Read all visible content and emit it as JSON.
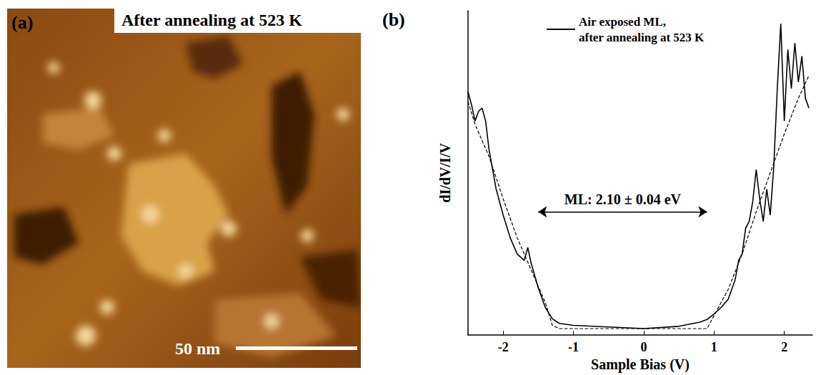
{
  "chart_data": [
    {
      "type": "image",
      "panel": "(a)",
      "title": "After annealing at 523 K",
      "scale_bar": "50 nm"
    },
    {
      "type": "line",
      "panel": "(b)",
      "x_label": "Sample Bias (V)",
      "y_label": "dI/dV/I/V",
      "xlim": [
        -2.5,
        2.4
      ],
      "xticks": [
        -2,
        -1,
        0,
        1,
        2
      ],
      "ylim": [
        0,
        1
      ],
      "tick_labels": "x",
      "grid": false,
      "legend": "top",
      "annotation": {
        "text": "ML: 2.10 ± 0.04 eV",
        "x": [
          -1.5,
          0.9
        ],
        "y": 0.38
      },
      "series": [
        {
          "name": "Air exposed ML, after annealing at 523 K",
          "color": "#000000",
          "line_style": "solid",
          "x": [
            -2.5,
            -2.45,
            -2.4,
            -2.35,
            -2.3,
            -2.25,
            -2.2,
            -2.1,
            -2.0,
            -1.9,
            -1.8,
            -1.75,
            -1.7,
            -1.65,
            -1.6,
            -1.5,
            -1.4,
            -1.3,
            -1.2,
            -1.0,
            -0.5,
            0,
            0.5,
            0.8,
            0.9,
            1.0,
            1.1,
            1.2,
            1.3,
            1.35,
            1.4,
            1.45,
            1.5,
            1.55,
            1.6,
            1.65,
            1.7,
            1.75,
            1.8,
            1.85,
            1.9,
            1.95,
            2.0,
            2.05,
            2.1,
            2.15,
            2.2,
            2.25,
            2.3,
            2.35
          ],
          "values": [
            0.75,
            0.71,
            0.66,
            0.69,
            0.7,
            0.66,
            0.57,
            0.45,
            0.37,
            0.3,
            0.25,
            0.24,
            0.23,
            0.27,
            0.22,
            0.145,
            0.085,
            0.05,
            0.036,
            0.03,
            0.025,
            0.02,
            0.027,
            0.04,
            0.048,
            0.065,
            0.085,
            0.11,
            0.17,
            0.23,
            0.25,
            0.33,
            0.35,
            0.41,
            0.51,
            0.42,
            0.35,
            0.45,
            0.37,
            0.52,
            0.76,
            0.96,
            0.66,
            0.88,
            0.76,
            0.9,
            0.78,
            0.86,
            0.73,
            0.7
          ]
        },
        {
          "color": "#000000",
          "line_style": "dashed",
          "x": [
            -2.5,
            -2.4,
            -2.2,
            -2.0,
            -1.8,
            -1.6,
            -1.4,
            -1.3,
            -1.2,
            0,
            0.9,
            1.0,
            1.2,
            1.4,
            1.6,
            1.8,
            2.0,
            2.2,
            2.35
          ],
          "values": [
            0.72,
            0.65,
            0.55,
            0.42,
            0.3,
            0.2,
            0.1,
            0.03,
            0.02,
            0.02,
            0.02,
            0.06,
            0.14,
            0.25,
            0.38,
            0.5,
            0.62,
            0.73,
            0.8
          ]
        }
      ]
    }
  ]
}
